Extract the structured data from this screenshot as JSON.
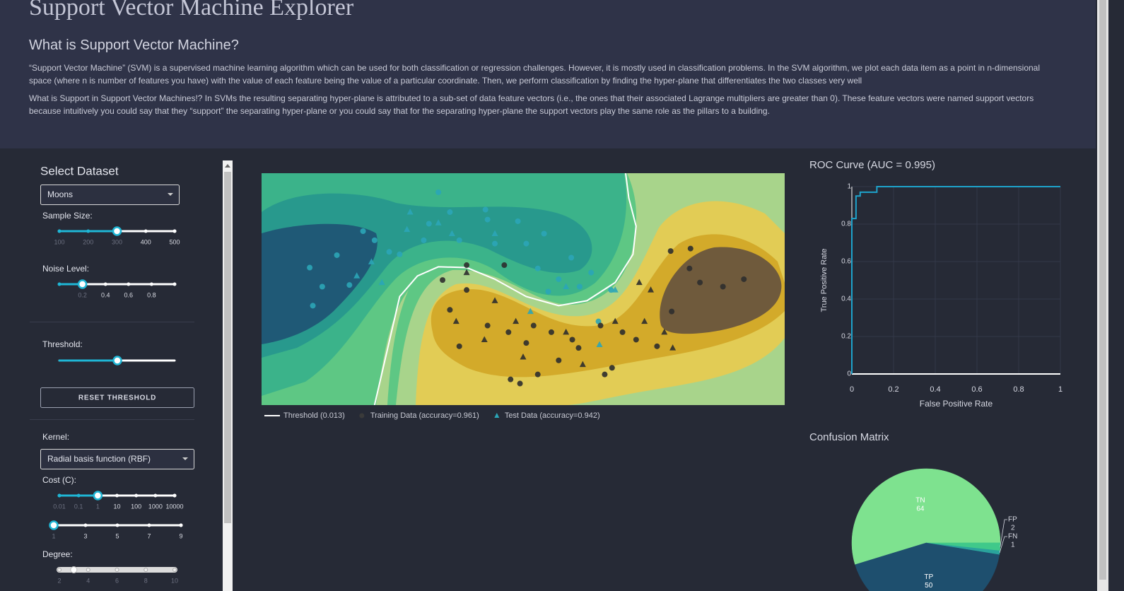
{
  "header": {
    "title": "Support Vector Machine Explorer",
    "subtitle": "What is Support Vector Machine?",
    "paragraphs": [
      "“Support Vector Machine” (SVM) is a supervised machine learning algorithm which can be used for both classification or regression challenges. However, it is mostly used in classification problems. In the SVM algorithm, we plot each data item as a point in n-dimensional space (where n is number of features you have) with the value of each feature being the value of a particular coordinate. Then, we perform classification by finding the hyper-plane that differentiates the two classes very well",
      "What is Support in Support Vector Machines!? In SVMs the resulting separating hyper-plane is attributed to a sub-set of data feature vectors (i.e., the ones that their associated Lagrange multipliers are greater than 0). These feature vectors were named support vectors because intuitively you could say that they “support” the separating hyper-plane or you could say that for the separating hyper-plane the support vectors play the same role as the pillars to a building."
    ]
  },
  "controls": {
    "dataset": {
      "label": "Select Dataset",
      "value": "Moons"
    },
    "sample_size": {
      "label": "Sample Size:",
      "lim": [
        100,
        500
      ],
      "ticks": [
        100,
        200,
        300,
        400,
        500
      ],
      "value": 300
    },
    "noise": {
      "label": "Noise Level:",
      "lim": [
        0,
        1
      ],
      "ticks": [
        0.2,
        0.4,
        0.6,
        0.8
      ],
      "value": 0.2
    },
    "threshold": {
      "label": "Threshold:"
    },
    "reset": "RESET THRESHOLD",
    "kernel": {
      "label": "Kernel:",
      "value": "Radial basis function (RBF)"
    },
    "cost": {
      "label": "Cost (C):",
      "log": true,
      "lim": [
        0.01,
        10000
      ],
      "ticks": [
        0.01,
        0.1,
        1,
        10,
        100,
        1000,
        10000
      ],
      "value": 1
    },
    "cost_scale": {
      "lim": [
        1,
        9
      ],
      "ticks": [
        1,
        3,
        5,
        7,
        9
      ],
      "value": 1
    },
    "degree": {
      "label": "Degree:",
      "lim": [
        2,
        10
      ],
      "ticks": [
        2,
        4,
        6,
        8,
        10
      ],
      "value": 3,
      "disabled": true
    }
  },
  "chart_data": [
    {
      "type": "scatter",
      "xlim": [
        -2,
        3
      ],
      "ylim": [
        -1.4,
        1.4
      ],
      "series": [
        {
          "name": "Threshold (0.013)",
          "mode": "line",
          "color": "#ffffff",
          "x": [
            -0.92,
            -0.68,
            -0.51,
            -0.31,
            -0.04,
            0.23,
            0.53,
            0.84,
            1.11,
            1.38,
            1.55,
            1.58,
            1.51,
            1.48
          ],
          "y": [
            -1.4,
            -0.09,
            0.16,
            0.27,
            0.26,
            0.12,
            -0.09,
            -0.2,
            -0.14,
            0.08,
            0.42,
            0.76,
            1.1,
            1.4
          ]
        },
        {
          "name": "Training Data (accuracy=0.961)",
          "mode": "markers",
          "marker": "circle",
          "colors": [
            "#2ba5b7",
            "#2e2e2e"
          ],
          "legend_color": "#3a3a3a",
          "x": [
            -1.54,
            -1.42,
            -1.51,
            -1.28,
            -1.16,
            -1.03,
            -0.78,
            -0.4,
            -0.2,
            0.14,
            0.45,
            0.7,
            0.96,
            1.15,
            1.34,
            0.84,
            0.64,
            0.23,
            -0.11,
            -0.45,
            -0.68,
            -0.92,
            -0.31,
            0.16,
            0.53,
            1.04,
            1.22,
            0.74,
            -0.27,
            -0.2,
            -0.04,
            -0.11,
            0.16,
            0.36,
            0.6,
            0.77,
            0.97,
            1.24,
            1.45,
            1.58,
            1.78,
            1.92,
            2.09,
            2.1,
            2.19,
            2.41,
            2.61,
            1.91,
            0.38,
            0.47,
            0.64,
            0.84,
            1.28,
            1.35,
            0.32,
            -0.04,
            0.53,
            1.03
          ],
          "y": [
            0.26,
            0.03,
            -0.2,
            0.41,
            0.05,
            0.7,
            0.45,
            0.79,
            0.93,
            0.96,
            0.82,
            0.67,
            0.38,
            0.2,
            -0.01,
            0.12,
            0.25,
            0.55,
            0.59,
            0.59,
            0.42,
            0.59,
            1.17,
            0.84,
            0.55,
            0.03,
            -0.39,
            -0.03,
            0.11,
            -0.25,
            -0.01,
            -0.69,
            -0.44,
            -0.52,
            -0.44,
            -0.52,
            -0.61,
            -0.44,
            -0.52,
            -0.61,
            -0.69,
            -0.27,
            0.25,
            0.49,
            0.08,
            0.03,
            0.12,
            0.46,
            -1.09,
            -1.14,
            -1.03,
            -0.86,
            -1.03,
            -0.95,
            0.29,
            0.29,
            -0.65,
            -0.71
          ],
          "classes": [
            0,
            0,
            0,
            0,
            0,
            0,
            0,
            0,
            0,
            0,
            0,
            0,
            0,
            0,
            0,
            0,
            0,
            0,
            0,
            0,
            0,
            0,
            0,
            0,
            0,
            0,
            0,
            0,
            1,
            1,
            1,
            1,
            1,
            1,
            1,
            1,
            1,
            1,
            1,
            1,
            1,
            1,
            1,
            1,
            1,
            1,
            1,
            1,
            1,
            1,
            1,
            1,
            1,
            1,
            1,
            1,
            1,
            1
          ]
        },
        {
          "name": "Test Data (accuracy=0.942)",
          "mode": "markers",
          "marker": "triangle",
          "colors": [
            "#2ba5b7",
            "#2e2e2e"
          ],
          "legend_color": "#2ba5b7",
          "x": [
            -0.95,
            -0.61,
            -0.18,
            0.57,
            0.91,
            1.38,
            -0.58,
            -0.31,
            0.23,
            -0.85,
            -1.09,
            1.23,
            -0.04,
            -0.14,
            0.13,
            0.43,
            0.5,
            1.07,
            1.38,
            1.61,
            1.72,
            1.85,
            1.93,
            1.66,
            0.91,
            0.23
          ],
          "y": [
            0.33,
            0.72,
            0.67,
            -0.27,
            0.03,
            -0.01,
            0.93,
            0.8,
            0.67,
            0.08,
            0.16,
            -0.67,
            0.2,
            -0.39,
            -0.61,
            -0.39,
            -0.82,
            -0.91,
            -0.39,
            0.08,
            -0.01,
            -0.52,
            -0.71,
            -0.39,
            -0.52,
            -0.14
          ],
          "classes": [
            0,
            0,
            0,
            0,
            0,
            0,
            0,
            0,
            0,
            0,
            0,
            0,
            1,
            1,
            1,
            1,
            1,
            1,
            1,
            1,
            1,
            1,
            1,
            1,
            1,
            1
          ]
        }
      ]
    },
    {
      "type": "line",
      "title": "ROC Curve (AUC = 0.995)",
      "x_label": "False Positive Rate",
      "y_label": "True Positive Rate",
      "xlim": [
        0,
        1
      ],
      "ylim": [
        0,
        1
      ],
      "xticks": [
        0,
        0.2,
        0.4,
        0.6,
        0.8,
        1
      ],
      "yticks": [
        0,
        0.2,
        0.4,
        0.6,
        0.8,
        1
      ],
      "grid": true,
      "series": [
        {
          "color": "#1ea3cc",
          "x": [
            0,
            0,
            0.02,
            0.02,
            0.04,
            0.04,
            0.12,
            0.12,
            1
          ],
          "y": [
            0,
            0.83,
            0.83,
            0.95,
            0.95,
            0.97,
            0.97,
            1,
            1
          ]
        }
      ]
    },
    {
      "type": "pie",
      "title": "Confusion Matrix",
      "categories": [
        "TN",
        "FP",
        "FN",
        "TP"
      ],
      "values": [
        64,
        2,
        1,
        50
      ],
      "colors": [
        "#7ee28f",
        "#40c98a",
        "#2aa39c",
        "#1e4f6e"
      ]
    }
  ]
}
